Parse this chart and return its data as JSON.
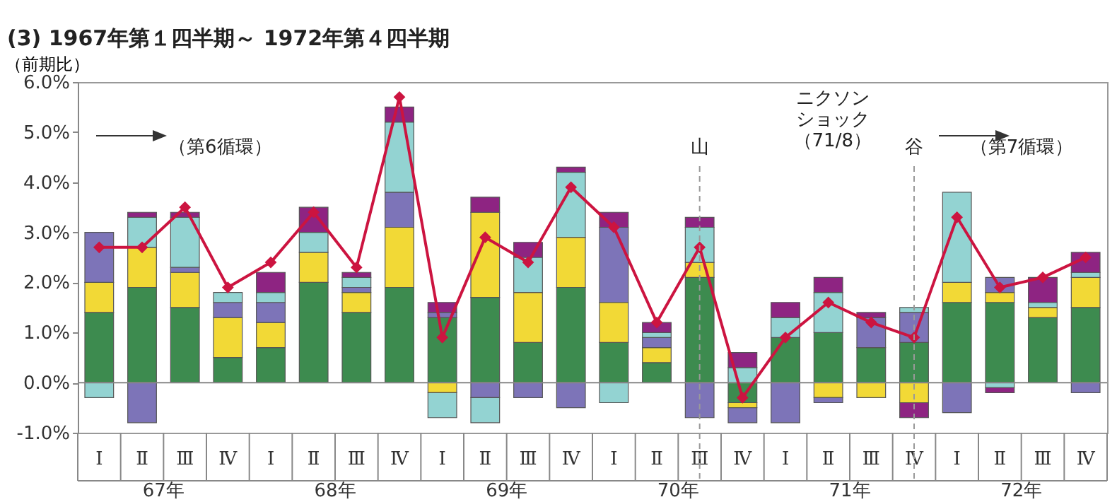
{
  "chart_data": {
    "type": "bar",
    "stacked": true,
    "title": "(3) 1967年第１四半期～ 1972年第４四半期",
    "ylabel": "（前期比）",
    "categories": [
      "Ⅰ",
      "Ⅱ",
      "Ⅲ",
      "Ⅳ",
      "Ⅰ",
      "Ⅱ",
      "Ⅲ",
      "Ⅳ",
      "Ⅰ",
      "Ⅱ",
      "Ⅲ",
      "Ⅳ",
      "Ⅰ",
      "Ⅱ",
      "Ⅲ",
      "Ⅳ",
      "Ⅰ",
      "Ⅱ",
      "Ⅲ",
      "Ⅳ",
      "Ⅰ",
      "Ⅱ",
      "Ⅲ",
      "Ⅳ"
    ],
    "ylim": [
      -1,
      6
    ],
    "yticks": [
      {
        "value": -1,
        "label": "-1.0%"
      },
      {
        "value": 0,
        "label": "0.0%"
      },
      {
        "value": 1,
        "label": "1.0%"
      },
      {
        "value": 2,
        "label": "2.0%"
      },
      {
        "value": 3,
        "label": "3.0%"
      },
      {
        "value": 4,
        "label": "4.0%"
      },
      {
        "value": 5,
        "label": "5.0%"
      },
      {
        "value": 6,
        "label": "6.0%"
      }
    ],
    "series": [
      {
        "color": "#3d8b4f",
        "values": [
          1.4,
          1.9,
          1.5,
          0.5,
          0.7,
          2.0,
          1.4,
          1.9,
          1.3,
          1.7,
          0.8,
          1.9,
          0.8,
          0.4,
          2.1,
          -0.4,
          0.9,
          1.0,
          0.7,
          0.8,
          1.6,
          1.6,
          1.3,
          1.5
        ]
      },
      {
        "color": "#f2d936",
        "values": [
          0.6,
          0.8,
          0.7,
          0.8,
          0.5,
          0.6,
          0.4,
          1.2,
          -0.2,
          1.7,
          1.0,
          1.0,
          0.8,
          0.3,
          0.3,
          -0.1,
          null,
          -0.3,
          -0.3,
          -0.4,
          0.4,
          0.2,
          0.2,
          0.6
        ]
      },
      {
        "color": "#7d74b8",
        "values": [
          1.0,
          -0.8,
          0.1,
          0.3,
          0.4,
          null,
          0.1,
          0.7,
          0.1,
          -0.3,
          -0.3,
          -0.5,
          1.5,
          0.2,
          -0.7,
          -0.3,
          -0.8,
          -0.1,
          0.6,
          0.6,
          -0.6,
          0.3,
          null,
          -0.2
        ]
      },
      {
        "color": "#93d3d2",
        "values": [
          -0.3,
          0.6,
          1.0,
          0.2,
          0.2,
          0.4,
          0.2,
          1.4,
          -0.5,
          -0.5,
          0.7,
          1.3,
          -0.4,
          0.1,
          0.7,
          0.3,
          0.4,
          0.8,
          null,
          0.1,
          1.8,
          -0.1,
          0.1,
          0.1
        ]
      },
      {
        "color": "#8e2482",
        "values": [
          null,
          0.1,
          0.1,
          null,
          0.4,
          0.5,
          0.1,
          0.3,
          0.2,
          0.3,
          0.3,
          0.1,
          0.3,
          0.2,
          0.2,
          0.3,
          0.3,
          0.3,
          0.1,
          -0.3,
          null,
          -0.1,
          0.5,
          0.4
        ]
      },
      {
        "type": "line",
        "color": "#cc1440",
        "marker": "diamond",
        "values": [
          2.7,
          2.7,
          3.5,
          1.9,
          2.4,
          3.4,
          2.3,
          5.7,
          0.9,
          2.9,
          2.4,
          3.9,
          3.1,
          1.2,
          2.7,
          -0.3,
          0.9,
          1.6,
          1.2,
          0.9,
          3.3,
          1.9,
          2.1,
          2.5
        ]
      }
    ],
    "ref_lines": [
      {
        "axis": "y",
        "value": 0,
        "color": "#888888",
        "line_style": "solid"
      }
    ],
    "annotations": [
      "（第6循環）",
      "ニクソンショック（71/8）",
      "（第7循環）",
      "山",
      "谷",
      "67年",
      "68年",
      "69年",
      "70年",
      "71年",
      "72年"
    ],
    "legend": false
  }
}
